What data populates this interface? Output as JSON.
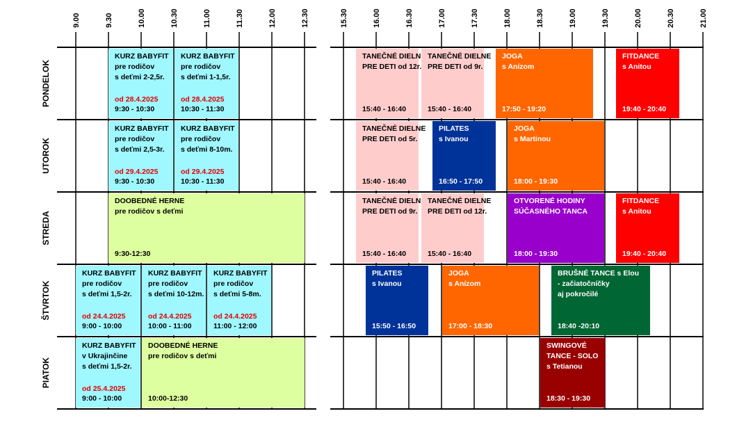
{
  "times_left": [
    "9.00",
    "9.30",
    "10.00",
    "10.30",
    "11.00",
    "11.30",
    "12.00",
    "12.30"
  ],
  "times_right": [
    "15.30",
    "16.00",
    "16.30",
    "17.00",
    "17.30",
    "18.00",
    "18.30",
    "19.00",
    "19.30",
    "20.00",
    "20.30",
    "21.00"
  ],
  "days": [
    {
      "name": "PONDELOK",
      "events": [
        {
          "lines": [
            "KURZ BABYFIT",
            "pre rodičov",
            "s deťmi 2-2,5r."
          ],
          "date": "od 28.4.2025",
          "time": "9:30 - 10:30",
          "color": "#9ff7ff",
          "text_color": "#000000"
        },
        {
          "lines": [
            "KURZ BABYFIT",
            "pre rodičov",
            "s deťmi 1-1,5r."
          ],
          "date": "od 28.4.2025",
          "time": "10:30 - 11:30",
          "color": "#9ff7ff",
          "text_color": "#000000"
        },
        {
          "lines": [
            "TANEČNÉ DIELNE",
            "PRE DETI od 12r."
          ],
          "time": "15:40 - 16:40",
          "color": "#ffcccc",
          "text_color": "#000000"
        },
        {
          "lines": [
            "TANEČNÉ DIELNE",
            "PRE DETI od 9r."
          ],
          "time": "15:40 - 16:40",
          "color": "#ffcccc",
          "text_color": "#000000"
        },
        {
          "lines": [
            "JOGA",
            "s Anízom"
          ],
          "time": "17:50 - 19:20",
          "color": "#ff6600",
          "text_color": "#ffffff"
        },
        {
          "lines": [
            "FITDANCE",
            "s Anitou"
          ],
          "time": "19:40 - 20:40",
          "color": "#ff0000",
          "text_color": "#ffffff"
        }
      ]
    },
    {
      "name": "UTOROK",
      "events": [
        {
          "lines": [
            "KURZ BABYFIT",
            "pre rodičov",
            "s deťmi 2,5-3r."
          ],
          "date": "od 29.4.2025",
          "time": "9:30 - 10:30",
          "color": "#9ff7ff",
          "text_color": "#000000"
        },
        {
          "lines": [
            "KURZ BABYFIT",
            "pre rodičov",
            "s deťmi 8-10m."
          ],
          "date": "od 29.4.2025",
          "time": "10:30 - 11:30",
          "color": "#9ff7ff",
          "text_color": "#000000"
        },
        {
          "lines": [
            "TANEČNÉ DIELNE",
            "PRE DETI od 5r."
          ],
          "time": "15:40 - 16:40",
          "color": "#ffcccc",
          "text_color": "#000000"
        },
        {
          "lines": [
            "PILATES",
            "s Ivanou"
          ],
          "time": "16:50 - 17:50",
          "color": "#003399",
          "text_color": "#ffffff"
        },
        {
          "lines": [
            "JOGA",
            "s Martinou"
          ],
          "time": "18:00 - 19:30",
          "color": "#ff6600",
          "text_color": "#ffffff"
        }
      ]
    },
    {
      "name": "STREDA",
      "events": [
        {
          "lines": [
            "DOOBEDNÉ HERNE",
            "pre rodičov s deťmi"
          ],
          "time": "9:30-12:30",
          "color": "#ddff9f",
          "text_color": "#000000"
        },
        {
          "lines": [
            "TANEČNÉ DIELNE",
            "PRE DETI od 9r."
          ],
          "time": "15:40 - 16:40",
          "color": "#ffcccc",
          "text_color": "#000000"
        },
        {
          "lines": [
            "TANEČNÉ DIELNE",
            "PRE DETI od 12r."
          ],
          "time": "15:40 - 16:40",
          "color": "#ffcccc",
          "text_color": "#000000"
        },
        {
          "lines": [
            "OTVORENÉ HODINY",
            "SÚČASNÉHO TANCA"
          ],
          "time": "18:00 - 19:30",
          "color": "#9900cc",
          "text_color": "#ffffff"
        },
        {
          "lines": [
            "FITDANCE",
            "s Anitou"
          ],
          "time": "19:40 - 20:40",
          "color": "#ff0000",
          "text_color": "#ffffff"
        }
      ]
    },
    {
      "name": "ŠTVRTOK",
      "events": [
        {
          "lines": [
            "KURZ BABYFIT",
            "pre rodičov",
            "s deťmi 1,5-2r."
          ],
          "date": "od 24.4.2025",
          "time": "9:00 - 10:00",
          "color": "#9ff7ff",
          "text_color": "#000000"
        },
        {
          "lines": [
            "KURZ BABYFIT",
            "pre rodičov",
            "s deťmi 10-12m."
          ],
          "date": "od 24.4.2025",
          "time": "10:00 - 11:00",
          "color": "#9ff7ff",
          "text_color": "#000000"
        },
        {
          "lines": [
            "KURZ BABYFIT",
            "pre rodičov",
            "s deťmi 5-8m."
          ],
          "date": "od 24.4.2025",
          "time": "11:00 - 12:00",
          "color": "#9ff7ff",
          "text_color": "#000000"
        },
        {
          "lines": [
            "PILATES",
            "s Ivanou"
          ],
          "time": "15:50 - 16:50",
          "color": "#003399",
          "text_color": "#ffffff"
        },
        {
          "lines": [
            "JOGA",
            "s Anízom"
          ],
          "time": "17:00 - 18:30",
          "color": "#ff6600",
          "text_color": "#ffffff"
        },
        {
          "lines": [
            "BRUŠNÉ TANCE s Elou",
            "- začiatočníčky",
            "aj pokročilé"
          ],
          "time": "18:40 -20:10",
          "color": "#006633",
          "text_color": "#ffffff"
        }
      ]
    },
    {
      "name": "PIATOK",
      "events": [
        {
          "lines": [
            "KURZ BABYFIT",
            "v Ukrajinčine",
            "s deťmi 1,5-2r."
          ],
          "date": "od 25.4.2025",
          "time": "9:00 - 10:00",
          "color": "#9ff7ff",
          "text_color": "#000000"
        },
        {
          "lines": [
            "DOOBEDNÉ HERNE",
            "pre rodičov s deťmi"
          ],
          "time": "10:00-12:30",
          "color": "#ddff9f",
          "text_color": "#000000"
        },
        {
          "lines": [
            "SWINGOVÉ",
            "TANCE - SOLO",
            "s Tetianou"
          ],
          "time": "18:30 - 19:30",
          "color": "#990000",
          "text_color": "#ffffff"
        }
      ]
    }
  ]
}
